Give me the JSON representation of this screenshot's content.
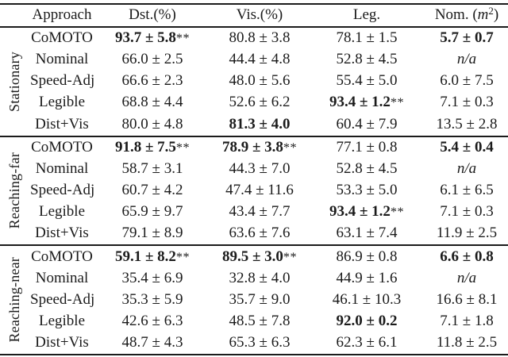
{
  "page": {
    "background": "#ffffff",
    "text_color": "#1b1b1b",
    "rule_color": "#1b1b1b"
  },
  "table": {
    "headers": {
      "corner": "",
      "approach": "Approach",
      "dst": "Dst.(%)",
      "vis": "Vis.(%)",
      "leg": "Leg.",
      "nom_prefix": "Nom. (",
      "nom_symbol": "m",
      "nom_exponent": "2",
      "nom_suffix": ")"
    },
    "groups": [
      {
        "label": "Stationary",
        "rows": [
          {
            "approach": "CoMOTO",
            "cells": [
              {
                "text": "93.7 ± 5.8",
                "bold": true,
                "stars": "**"
              },
              {
                "text": "80.8 ± 3.8"
              },
              {
                "text": "78.1 ± 1.5"
              },
              {
                "text": "5.7 ± 0.7",
                "bold": true
              }
            ]
          },
          {
            "approach": "Nominal",
            "cells": [
              {
                "text": "66.0 ± 2.5"
              },
              {
                "text": "44.4 ± 4.8"
              },
              {
                "text": "52.8 ± 4.5"
              },
              {
                "text": "n/a",
                "italic": true
              }
            ]
          },
          {
            "approach": "Speed-Adj",
            "cells": [
              {
                "text": "66.6 ± 2.3"
              },
              {
                "text": "48.0 ± 5.6"
              },
              {
                "text": "55.4 ± 5.0"
              },
              {
                "text": "6.0 ± 7.5"
              }
            ]
          },
          {
            "approach": "Legible",
            "cells": [
              {
                "text": "68.8 ± 4.4"
              },
              {
                "text": "52.6 ± 6.2"
              },
              {
                "text": "93.4 ± 1.2",
                "bold": true,
                "stars": "**"
              },
              {
                "text": "7.1 ± 0.3"
              }
            ]
          },
          {
            "approach": "Dist+Vis",
            "cells": [
              {
                "text": "80.0 ± 4.8"
              },
              {
                "text": "81.3 ± 4.0",
                "bold": true
              },
              {
                "text": "60.4 ± 7.9"
              },
              {
                "text": "13.5 ± 2.8"
              }
            ]
          }
        ]
      },
      {
        "label": "Reaching-far",
        "rows": [
          {
            "approach": "CoMOTO",
            "cells": [
              {
                "text": "91.8 ± 7.5",
                "bold": true,
                "stars": "**"
              },
              {
                "text": "78.9 ± 3.8",
                "bold": true,
                "stars": "**"
              },
              {
                "text": "77.1 ± 0.8"
              },
              {
                "text": "5.4 ± 0.4",
                "bold": true
              }
            ]
          },
          {
            "approach": "Nominal",
            "cells": [
              {
                "text": "58.7 ± 3.1"
              },
              {
                "text": "44.3 ± 7.0"
              },
              {
                "text": "52.8 ± 4.5"
              },
              {
                "text": "n/a",
                "italic": true
              }
            ]
          },
          {
            "approach": "Speed-Adj",
            "cells": [
              {
                "text": "60.7 ± 4.2"
              },
              {
                "text": "47.4 ± 11.6"
              },
              {
                "text": "53.3 ± 5.0"
              },
              {
                "text": "6.1 ± 6.5"
              }
            ]
          },
          {
            "approach": "Legible",
            "cells": [
              {
                "text": "65.9 ± 9.7"
              },
              {
                "text": "43.4 ± 7.7"
              },
              {
                "text": "93.4 ± 1.2",
                "bold": true,
                "stars": "**"
              },
              {
                "text": "7.1 ± 0.3"
              }
            ]
          },
          {
            "approach": "Dist+Vis",
            "cells": [
              {
                "text": "79.1 ± 8.9"
              },
              {
                "text": "63.6 ± 7.6"
              },
              {
                "text": "63.1 ± 7.4"
              },
              {
                "text": "11.9 ± 2.5"
              }
            ]
          }
        ]
      },
      {
        "label": "Reaching-near",
        "rows": [
          {
            "approach": "CoMOTO",
            "cells": [
              {
                "text": "59.1 ± 8.2",
                "bold": true,
                "stars": "**"
              },
              {
                "text": "89.5 ± 3.0",
                "bold": true,
                "stars": "**"
              },
              {
                "text": "86.9 ± 0.8"
              },
              {
                "text": "6.6 ± 0.8",
                "bold": true
              }
            ]
          },
          {
            "approach": "Nominal",
            "cells": [
              {
                "text": "35.4 ± 6.9"
              },
              {
                "text": "32.8 ± 4.0"
              },
              {
                "text": "44.9 ± 1.6"
              },
              {
                "text": "n/a",
                "italic": true
              }
            ]
          },
          {
            "approach": "Speed-Adj",
            "cells": [
              {
                "text": "35.3 ± 5.9"
              },
              {
                "text": "35.7 ± 9.0"
              },
              {
                "text": "46.1 ± 10.3"
              },
              {
                "text": "16.6 ± 8.1"
              }
            ]
          },
          {
            "approach": "Legible",
            "cells": [
              {
                "text": "42.6 ± 6.3"
              },
              {
                "text": "48.5 ± 7.8"
              },
              {
                "text": "92.0 ± 0.2",
                "bold": true
              },
              {
                "text": "7.1 ± 1.8"
              }
            ]
          },
          {
            "approach": "Dist+Vis",
            "cells": [
              {
                "text": "48.7 ± 4.3"
              },
              {
                "text": "65.3 ± 6.3"
              },
              {
                "text": "62.3 ± 6.1"
              },
              {
                "text": "11.8 ± 2.5"
              }
            ]
          }
        ]
      }
    ]
  }
}
